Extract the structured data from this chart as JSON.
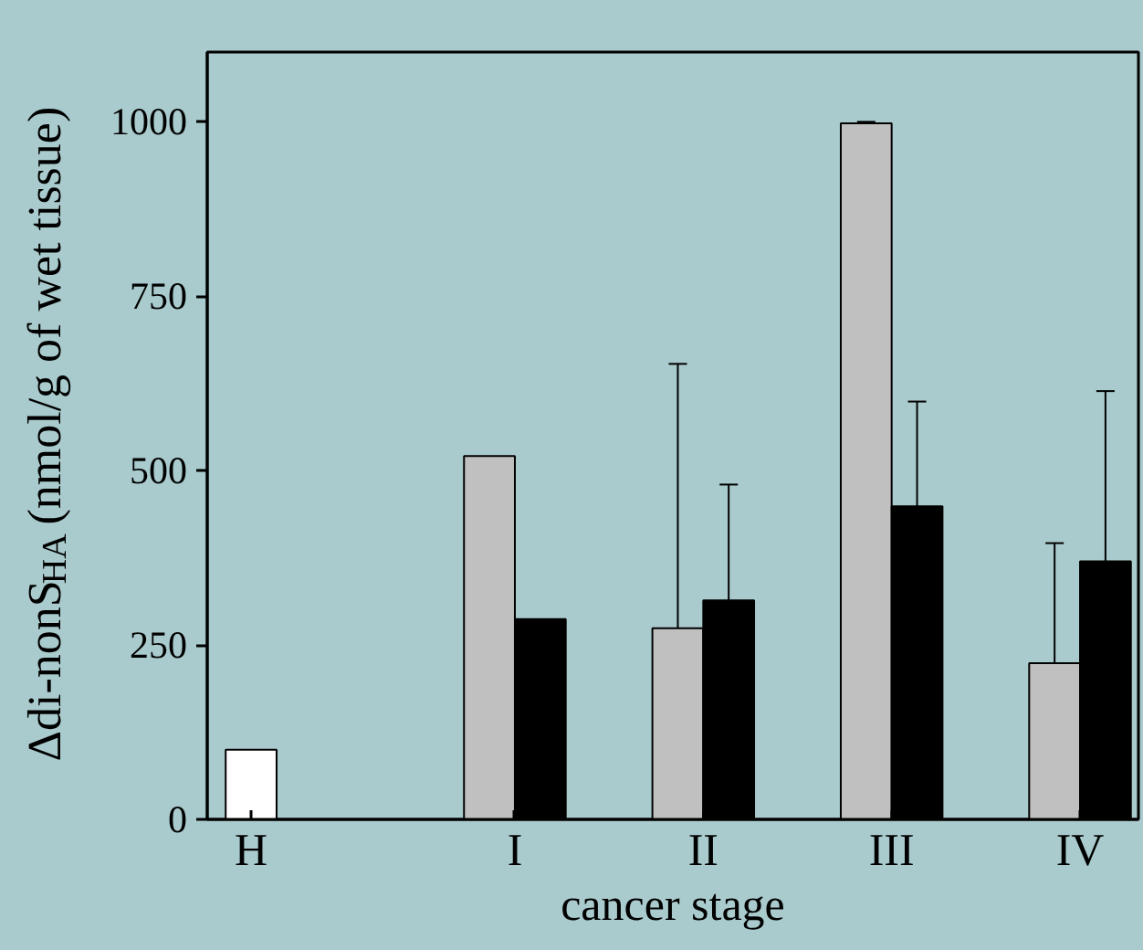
{
  "chart_data": {
    "type": "bar",
    "xlabel": "cancer stage",
    "ylabel": "Δdi-nonS$_{HA}$ (nmol/g of wet tissue)",
    "categories": [
      "H",
      "I",
      "II",
      "III",
      "IV"
    ],
    "series": [
      {
        "color": "#ffffff",
        "values": [
          100,
          null,
          null,
          null,
          null
        ]
      },
      {
        "color": "#c0c0c0",
        "values": [
          null,
          521,
          274,
          998,
          224
        ],
        "errors": [
          null,
          null,
          [
            274,
            653
          ],
          [
            998,
            1000
          ],
          [
            224,
            396
          ]
        ]
      },
      {
        "color": "#000000",
        "values": [
          null,
          287,
          314,
          449,
          370
        ],
        "errors": [
          null,
          null,
          [
            314,
            480
          ],
          [
            449,
            599
          ],
          [
            370,
            614
          ]
        ]
      }
    ],
    "ylim": [
      0,
      1100
    ],
    "yticks": [
      0,
      250,
      500,
      750,
      1000
    ],
    "grid": false
  }
}
